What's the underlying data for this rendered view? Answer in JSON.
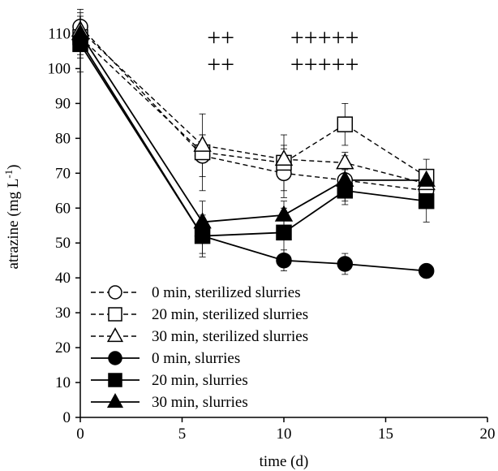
{
  "chart_data": {
    "type": "line",
    "xlabel": "time (d)",
    "ylabel": "atrazine (mg L",
    "ylabel_sup": "-1",
    "ylabel_close": ")",
    "xlim": [
      0,
      20
    ],
    "ylim": [
      0,
      115
    ],
    "x_ticks": [
      "0",
      "5",
      "10",
      "15",
      "20"
    ],
    "y_ticks": [
      "0",
      "10",
      "20",
      "30",
      "40",
      "50",
      "60",
      "70",
      "80",
      "90",
      "100",
      "110"
    ],
    "grid": false,
    "legend_position": "bottom-left",
    "annotations": [
      {
        "text": "++",
        "x": 6.9,
        "row": "upper"
      },
      {
        "text": "++",
        "x": 6.9,
        "row": "lower"
      },
      {
        "text": "+++++",
        "x": 12.0,
        "row": "upper"
      },
      {
        "text": "+++++",
        "x": 12.0,
        "row": "lower"
      }
    ],
    "x": [
      0,
      6,
      10,
      13,
      17
    ],
    "series": [
      {
        "name": "0 min, sterilized slurries",
        "marker": "circle",
        "filled": false,
        "dashed": true,
        "values": [
          112,
          75,
          70,
          68,
          65
        ],
        "errors": [
          3,
          6,
          7,
          7,
          5
        ]
      },
      {
        "name": "20 min, sterilized slurries",
        "marker": "square",
        "filled": false,
        "dashed": true,
        "values": [
          109,
          76,
          73,
          84,
          69
        ],
        "errors": [
          3,
          11,
          8,
          6,
          5
        ]
      },
      {
        "name": "30 min, sterilized slurries",
        "marker": "triangle",
        "filled": false,
        "dashed": true,
        "values": [
          111,
          78,
          74,
          73,
          67
        ],
        "errors": [
          3,
          3,
          4,
          3,
          3
        ]
      },
      {
        "name": "0 min, slurries",
        "marker": "circle",
        "filled": true,
        "dashed": false,
        "values": [
          108,
          52,
          45,
          44,
          42
        ],
        "errors": [
          9,
          5,
          3,
          3,
          2
        ]
      },
      {
        "name": "20 min, slurries",
        "marker": "square",
        "filled": true,
        "dashed": false,
        "values": [
          107,
          52,
          53,
          65,
          62
        ],
        "errors": [
          4,
          6,
          7,
          3,
          6
        ]
      },
      {
        "name": "30 min, slurries",
        "marker": "triangle",
        "filled": true,
        "dashed": false,
        "values": [
          110,
          56,
          58,
          68,
          68
        ],
        "errors": [
          6,
          6,
          4,
          3,
          2
        ]
      }
    ]
  }
}
